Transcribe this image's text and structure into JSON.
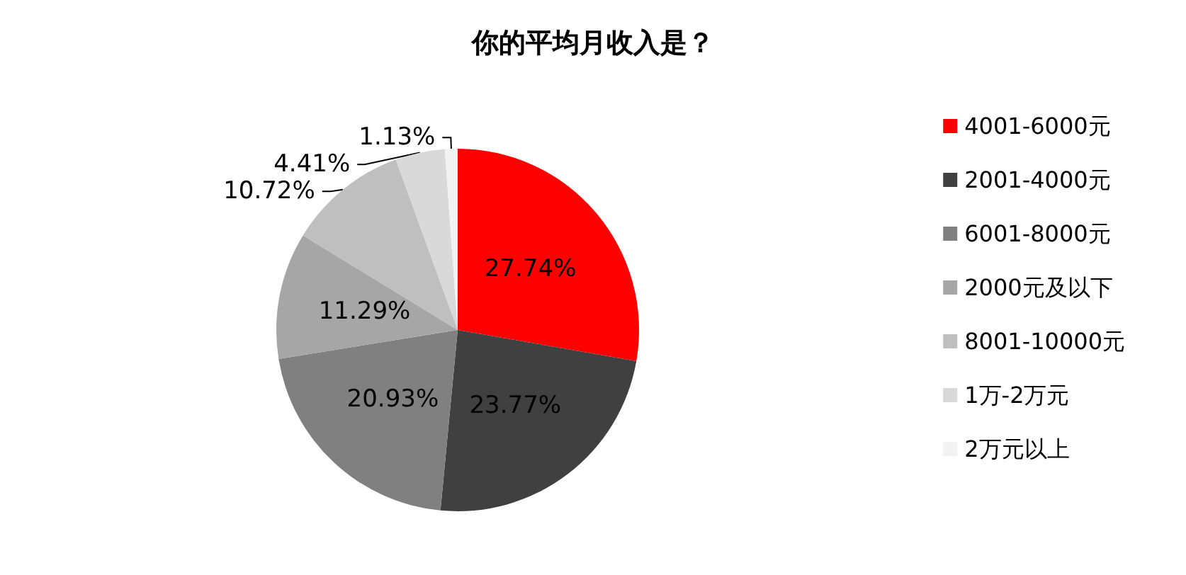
{
  "chart_data": {
    "type": "pie",
    "title": "你的平均月收入是？",
    "categories": [
      "4001-6000元",
      "2001-4000元",
      "6001-8000元",
      "2000元及以下",
      "8001-10000元",
      "1万-2万元",
      "2万元以上"
    ],
    "values": [
      27.74,
      23.77,
      20.93,
      11.29,
      10.72,
      4.41,
      1.13
    ],
    "colors": [
      "#ff0000",
      "#404040",
      "#808080",
      "#a6a6a6",
      "#bfbfbf",
      "#d9d9d9",
      "#f2f2f2"
    ],
    "value_labels": [
      "27.74%",
      "23.77%",
      "20.93%",
      "11.29%",
      "10.72%",
      "4.41%",
      "1.13%"
    ],
    "legend": "right"
  }
}
